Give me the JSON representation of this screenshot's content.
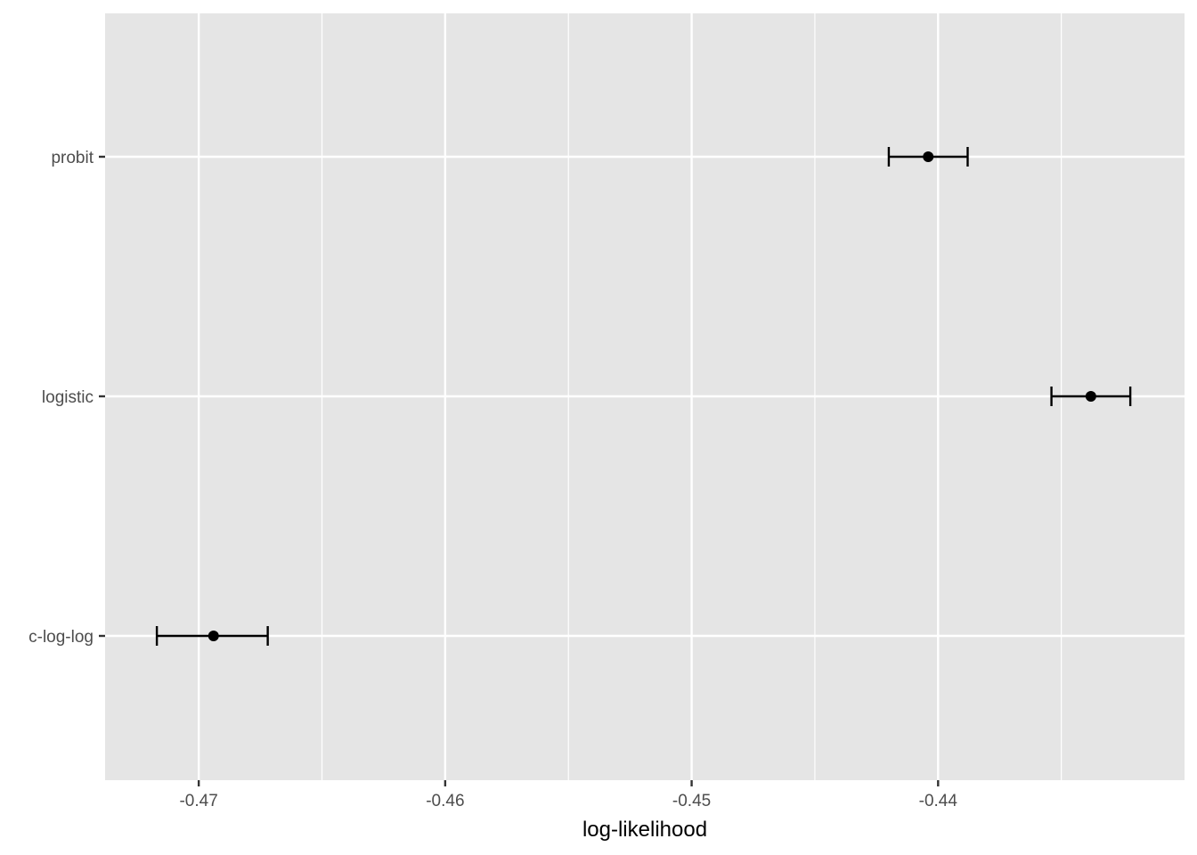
{
  "chart_data": {
    "type": "errorbar",
    "orientation": "horizontal",
    "title": "",
    "xlabel": "log-likelihood",
    "ylabel": "",
    "categories": [
      "c-log-log",
      "logistic",
      "probit"
    ],
    "points": [
      {
        "model": "c-log-log",
        "estimate": -0.4694,
        "lower": -0.4717,
        "upper": -0.4672
      },
      {
        "model": "logistic",
        "estimate": -0.4338,
        "lower": -0.4354,
        "upper": -0.4322
      },
      {
        "model": "probit",
        "estimate": -0.4404,
        "lower": -0.442,
        "upper": -0.4388
      }
    ],
    "xlim": [
      -0.4738,
      -0.43
    ],
    "x_ticks": [
      -0.47,
      -0.46,
      -0.45,
      -0.44
    ],
    "x_tick_labels": [
      "-0.47",
      "-0.46",
      "-0.45",
      "-0.44"
    ],
    "x_minor_ticks": [
      -0.465,
      -0.455,
      -0.445,
      -0.435
    ],
    "grid": true,
    "colors": {
      "panel_background": "#e5e5e5",
      "grid_line": "#ffffff",
      "point": "#000000",
      "errorbar": "#000000",
      "tick_label": "#4d4d4d",
      "tick_mark": "#333333"
    }
  }
}
